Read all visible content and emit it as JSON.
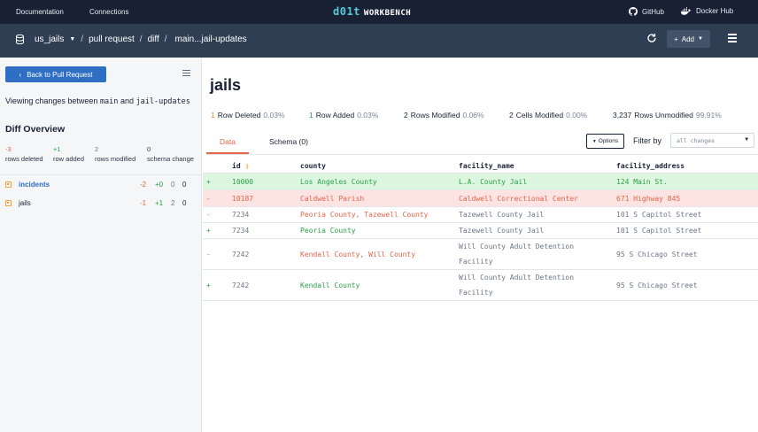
{
  "topnav": {
    "documentation": "Documentation",
    "connections": "Connections",
    "logo_d": "d01t",
    "logo_w": "WORKBENCH",
    "github": "GitHub",
    "dockerhub": "Docker Hub"
  },
  "breadcrumb": {
    "db": "us_jails",
    "pull_request": "pull request",
    "diff": "diff",
    "range": "main...jail-updates"
  },
  "subbar": {
    "add_label": "Add"
  },
  "left": {
    "back_label": "Back to Pull Request",
    "viewing_prefix": "Viewing changes between",
    "from_branch": "main",
    "and": "and",
    "to_branch": "jail-updates",
    "overview_title": "Diff Overview",
    "stats": [
      {
        "num": "-3",
        "label": "rows deleted",
        "color": "#e4644b"
      },
      {
        "num": "+1",
        "label": "row added",
        "color": "#2aa148"
      },
      {
        "num": "2",
        "label": "rows modified",
        "color": "#6b7687"
      },
      {
        "num": "0",
        "label": "schema change",
        "color": "#182134"
      }
    ],
    "tables": [
      {
        "name": "incidents",
        "del": "-2",
        "add": "+0",
        "mod": "0",
        "schema": "0",
        "active": true
      },
      {
        "name": "jails",
        "del": "-1",
        "add": "+1",
        "mod": "2",
        "schema": "0",
        "active": false
      }
    ]
  },
  "main": {
    "title": "jails",
    "summary": {
      "deleted_num": "1",
      "deleted_label": "Row Deleted",
      "deleted_pct": "0.03%",
      "added_num": "1",
      "added_label": "Row Added",
      "added_pct": "0.03%",
      "modified_num": "2",
      "modified_label": "Rows Modified",
      "modified_pct": "0.06%",
      "cells_num": "2",
      "cells_label": "Cells Modified",
      "cells_pct": "0.00%",
      "unmod_num": "3,237",
      "unmod_label": "Rows Unmodified",
      "unmod_pct": "99.91%"
    },
    "tabs": {
      "data": "Data",
      "schema": "Schema (0)"
    },
    "options_label": "Options",
    "filter_label": "Filter by",
    "filter_value": "all changes",
    "columns": {
      "id": "id",
      "county": "county",
      "facility_name": "facility_name",
      "facility_address": "facility_address"
    },
    "rows": [
      {
        "marker": "+",
        "type": "add",
        "id": "10000",
        "county": "Los Angeles County",
        "fac1": "L.A. County Jail",
        "fac2": "",
        "address": "124 Main St."
      },
      {
        "marker": "-",
        "type": "del",
        "id": "10187",
        "county": "Caldwell Parish",
        "fac1": "Caldwell Correctional Center",
        "fac2": "",
        "address": "671 Highway 845"
      },
      {
        "marker": "-",
        "type": "moddel",
        "id": "7234",
        "county": "Peoria County, Tazewell County",
        "fac1": "Tazewell County Jail",
        "fac2": "",
        "address": "101 S Capitol Street"
      },
      {
        "marker": "+",
        "type": "modadd",
        "id": "7234",
        "county": "Peoria County",
        "fac1": "Tazewell County Jail",
        "fac2": "",
        "address": "101 S Capitol Street"
      },
      {
        "marker": "-",
        "type": "moddel",
        "id": "7242",
        "county": "Kendall County, Will County",
        "fac1": "Will County Adult Detention",
        "fac2": "Facility",
        "address": "95 S Chicago Street"
      },
      {
        "marker": "+",
        "type": "modadd",
        "id": "7242",
        "county": "Kendall County",
        "fac1": "Will County Adult Detention",
        "fac2": "Facility",
        "address": "95 S Chicago Street"
      }
    ]
  },
  "colors": {
    "add_bg": "#ddf6e0",
    "del_bg": "#fde3e1",
    "add_fg": "#2aa148",
    "del_fg": "#e4644b",
    "nav": "#182134",
    "subbar": "#2f3e52"
  }
}
